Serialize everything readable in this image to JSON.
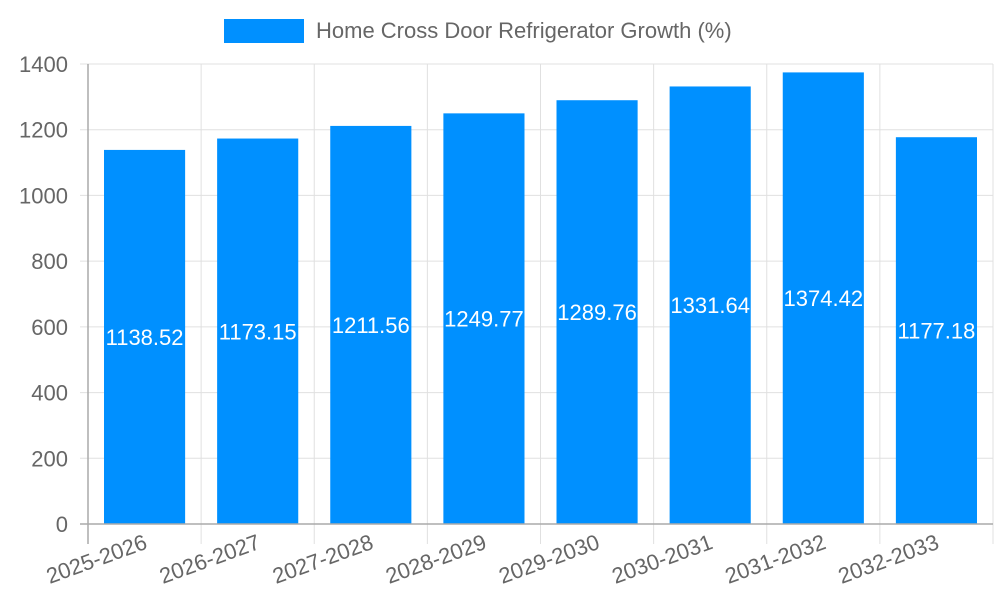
{
  "chart_data": {
    "type": "bar",
    "title": "",
    "legend": [
      "Home Cross Door Refrigerator Growth (%)"
    ],
    "legend_position": "top",
    "categories": [
      "2025-2026",
      "2026-2027",
      "2027-2028",
      "2028-2029",
      "2029-2030",
      "2030-2031",
      "2031-2032",
      "2032-2033"
    ],
    "series": [
      {
        "name": "Home Cross Door Refrigerator Growth (%)",
        "values": [
          1138.52,
          1173.15,
          1211.56,
          1249.77,
          1289.76,
          1331.64,
          1374.42,
          1177.18
        ],
        "color": "#0090ff"
      }
    ],
    "data_labels": [
      "1138.52",
      "1173.15",
      "1211.56",
      "1249.77",
      "1289.76",
      "1331.64",
      "1374.42",
      "1177.18"
    ],
    "xlabel": "",
    "ylabel": "",
    "ylim": [
      0,
      1400
    ],
    "yticks": [
      0,
      200,
      400,
      600,
      800,
      1000,
      1200,
      1400
    ],
    "grid": true,
    "x_tick_rotation": -20
  },
  "legend": {
    "label": "Home Cross Door Refrigerator Growth (%)",
    "color": "#0090ff"
  },
  "colors": {
    "bar": "#0090ff",
    "grid": "#e0e0e0",
    "axis": "#aaaaaa",
    "tick_text": "#666666",
    "data_label": "#ffffff"
  }
}
